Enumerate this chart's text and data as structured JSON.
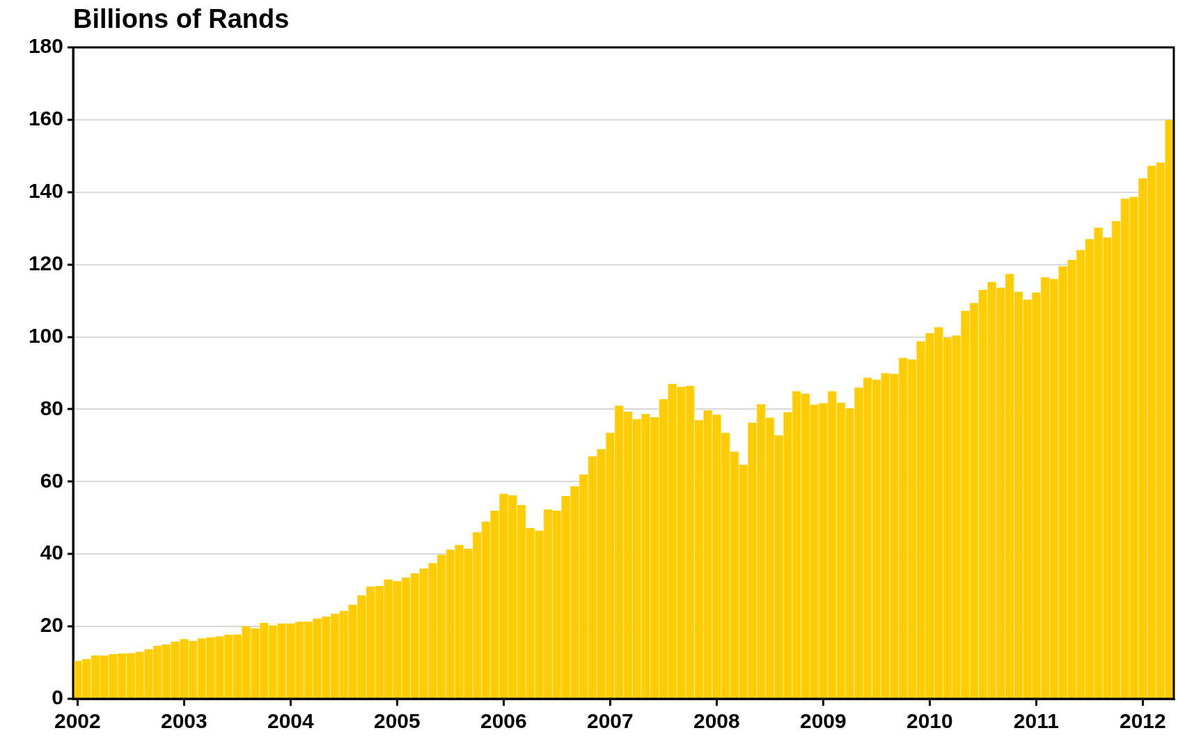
{
  "chart_data": {
    "type": "bar",
    "title": "Billions of Rands",
    "categories": [
      "2002",
      null,
      null,
      null,
      null,
      null,
      null,
      null,
      null,
      null,
      null,
      null,
      "2003",
      null,
      null,
      null,
      null,
      null,
      null,
      null,
      null,
      null,
      null,
      null,
      "2004",
      null,
      null,
      null,
      null,
      null,
      null,
      null,
      null,
      null,
      null,
      null,
      "2005",
      null,
      null,
      null,
      null,
      null,
      null,
      null,
      null,
      null,
      null,
      null,
      "2006",
      null,
      null,
      null,
      null,
      null,
      null,
      null,
      null,
      null,
      null,
      null,
      "2007",
      null,
      null,
      null,
      null,
      null,
      null,
      null,
      null,
      null,
      null,
      null,
      "2008",
      null,
      null,
      null,
      null,
      null,
      null,
      null,
      null,
      null,
      null,
      null,
      "2009",
      null,
      null,
      null,
      null,
      null,
      null,
      null,
      null,
      null,
      null,
      null,
      "2010",
      null,
      null,
      null,
      null,
      null,
      null,
      null,
      null,
      null,
      null,
      null,
      "2011",
      null,
      null,
      null,
      null,
      null,
      null,
      null,
      null,
      null,
      null,
      null,
      "2012",
      null,
      null,
      null
    ],
    "values": [
      10.5,
      11,
      12,
      12,
      12.3,
      12.5,
      12.6,
      13,
      13.7,
      14.7,
      15,
      15.8,
      16.5,
      16,
      16.7,
      17,
      17.3,
      17.7,
      17.8,
      20,
      19.5,
      21,
      20.3,
      20.8,
      20.8,
      21.3,
      21.3,
      22.2,
      22.7,
      23.5,
      24.3,
      26,
      28.6,
      31,
      31.2,
      33,
      32.5,
      33.5,
      34.7,
      36,
      37.5,
      39.8,
      41.2,
      42.5,
      41.5,
      46,
      49,
      52,
      56.7,
      56.2,
      53.5,
      47.2,
      46.5,
      52.3,
      52,
      56,
      58.7,
      62,
      67,
      69,
      73.5,
      81,
      79.3,
      77.3,
      78.7,
      77.8,
      82.8,
      87,
      86.2,
      86.5,
      77,
      79.7,
      78.5,
      73.5,
      68.3,
      64.7,
      76.3,
      81.4,
      77.7,
      72.8,
      79.2,
      85,
      84.3,
      81.3,
      81.7,
      85,
      81.8,
      80.3,
      86,
      88.7,
      88.2,
      90,
      89.8,
      94.2,
      93.8,
      98.8,
      101,
      102.7,
      99.8,
      100.4,
      107.2,
      109.4,
      113,
      115.2,
      113.6,
      117.4,
      112.5,
      110.3,
      112.3,
      116.5,
      116,
      119.5,
      121.3,
      124,
      127,
      130.2,
      127.5,
      132,
      138.2,
      138.7,
      143.8,
      147.3,
      148.2,
      160
    ],
    "color": "#ffcc00",
    "ylim": [
      0,
      180
    ],
    "yticks": [
      0,
      20,
      40,
      60,
      80,
      100,
      120,
      140,
      160,
      180
    ],
    "grid": "y",
    "legend": false
  }
}
